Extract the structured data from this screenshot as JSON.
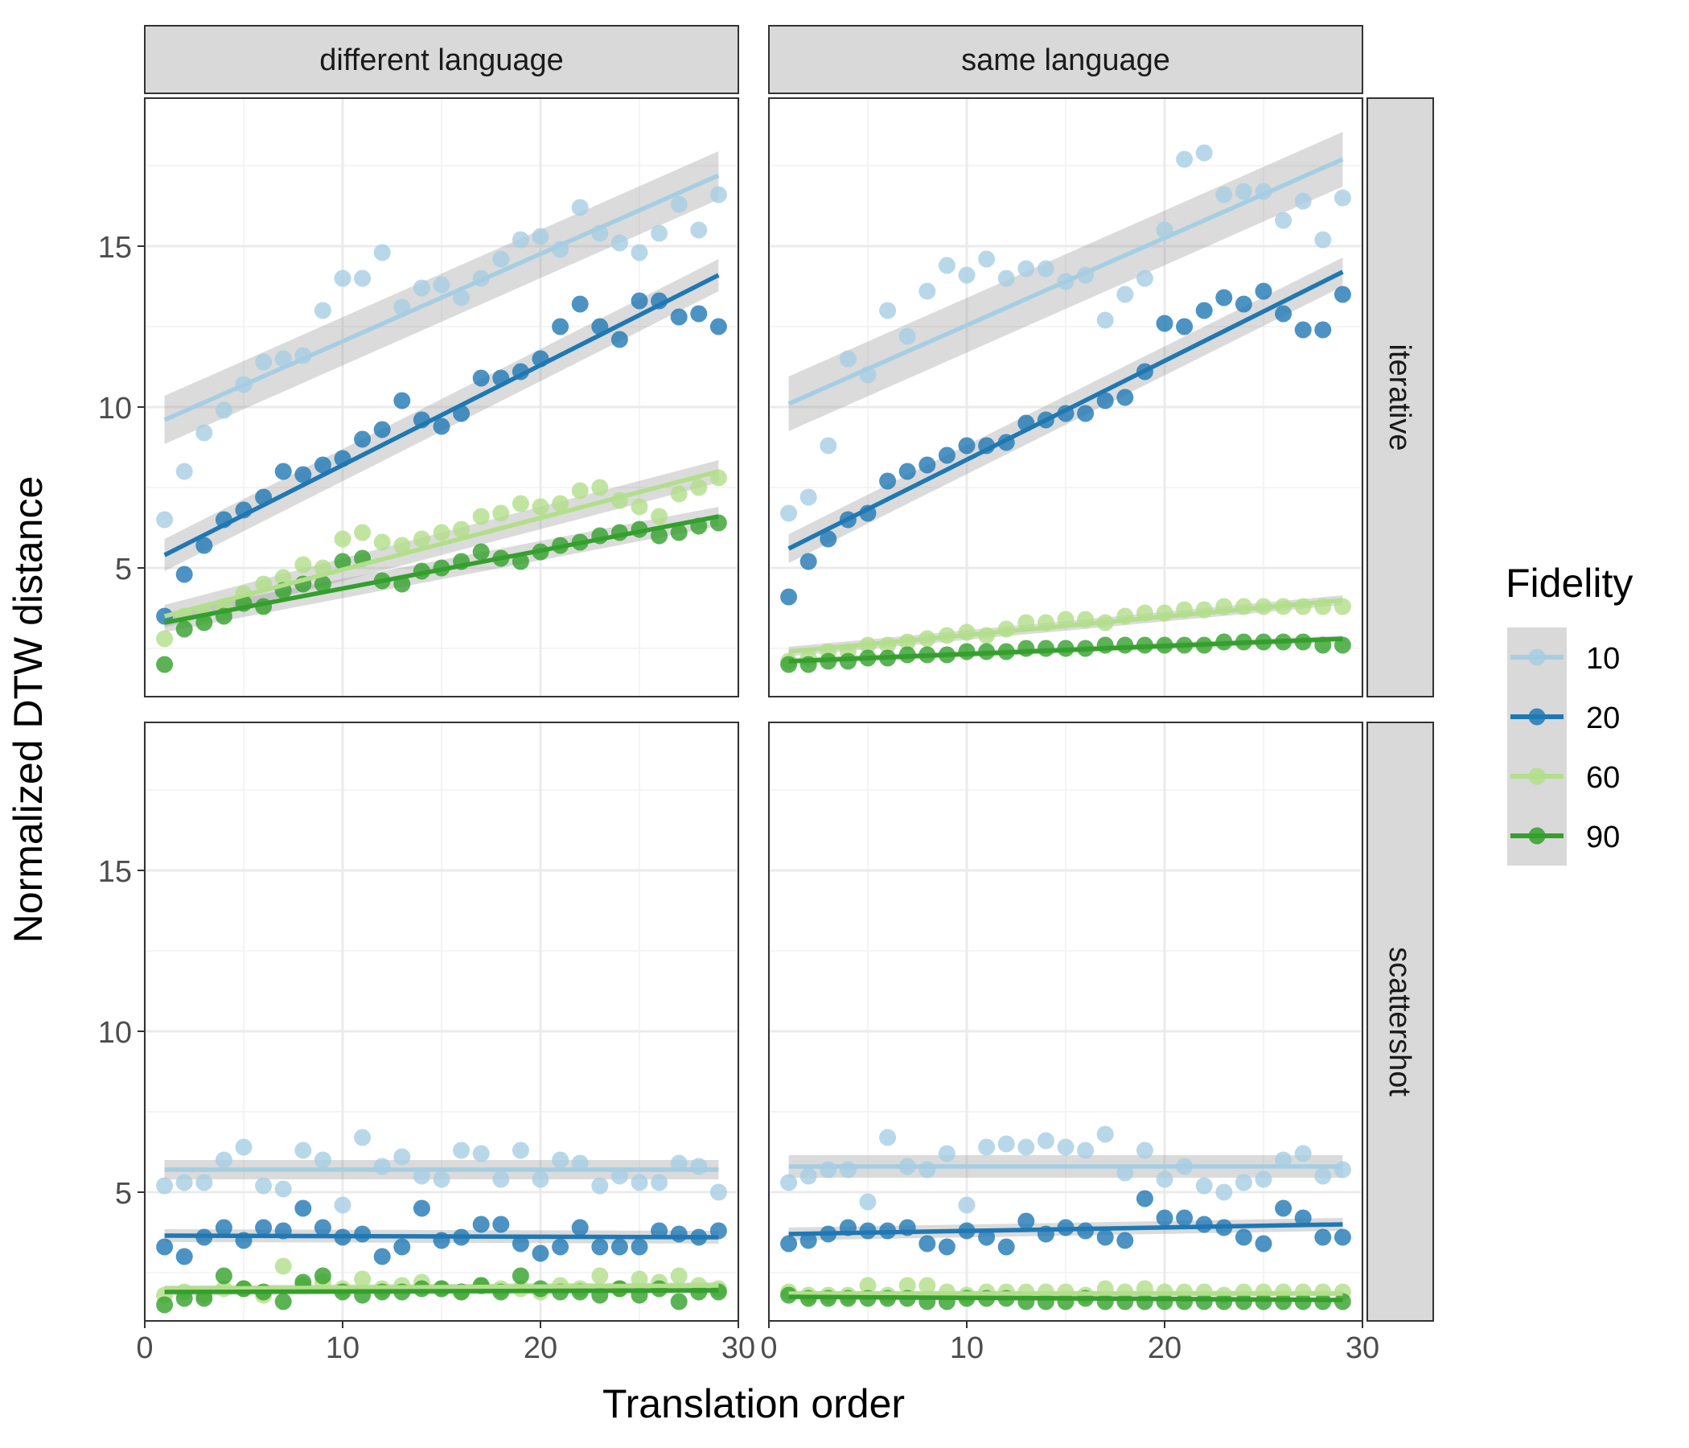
{
  "chart_data": {
    "type": "scatter",
    "xlabel": "Translation order",
    "ylabel": "Normalized DTW distance",
    "xlim": [
      0,
      30
    ],
    "ylim": [
      1.0,
      19.6
    ],
    "x_ticks": [
      0,
      10,
      20,
      30
    ],
    "y_ticks": [
      5,
      10,
      15
    ],
    "grid": true,
    "columns": [
      "different language",
      "same language"
    ],
    "rows": [
      "iterative",
      "scattershot"
    ],
    "legend": {
      "title": "Fidelity",
      "position": "right",
      "entries": [
        "10",
        "20",
        "60",
        "90"
      ]
    },
    "colors": {
      "10": "#a6cee3",
      "20": "#1f78b4",
      "60": "#b2df8a",
      "90": "#33a02c"
    },
    "x": [
      1,
      2,
      3,
      4,
      5,
      6,
      7,
      8,
      9,
      10,
      11,
      12,
      13,
      14,
      15,
      16,
      17,
      18,
      19,
      20,
      21,
      22,
      23,
      24,
      25,
      26,
      27,
      28,
      29
    ],
    "panels": [
      {
        "column": "different language",
        "row": "iterative",
        "series": [
          {
            "name": "10",
            "values": [
              6.5,
              8.0,
              9.2,
              9.9,
              10.7,
              11.4,
              11.5,
              11.6,
              13.0,
              14.0,
              14.0,
              14.8,
              13.1,
              13.7,
              13.8,
              13.4,
              14.0,
              14.6,
              15.2,
              15.3,
              14.9,
              16.2,
              15.4,
              15.1,
              14.8,
              15.4,
              16.3,
              15.5,
              16.6
            ],
            "fit": [
              9.6,
              17.2
            ],
            "band": 0.75
          },
          {
            "name": "20",
            "values": [
              3.5,
              4.8,
              5.7,
              6.5,
              6.8,
              7.2,
              8.0,
              7.9,
              8.2,
              8.4,
              9.0,
              9.3,
              10.2,
              9.6,
              9.4,
              9.8,
              10.9,
              10.9,
              11.1,
              11.5,
              12.5,
              13.2,
              12.5,
              12.1,
              13.3,
              13.3,
              12.8,
              12.9,
              12.5
            ],
            "fit": [
              5.4,
              14.1
            ],
            "band": 0.5
          },
          {
            "name": "60",
            "values": [
              2.8,
              3.5,
              3.6,
              3.8,
              4.2,
              4.5,
              4.7,
              5.1,
              5.0,
              5.9,
              6.1,
              5.8,
              5.7,
              5.9,
              6.1,
              6.2,
              6.6,
              6.7,
              7.0,
              6.9,
              7.0,
              7.4,
              7.5,
              7.1,
              6.9,
              6.6,
              7.3,
              7.5,
              7.8
            ],
            "fit": [
              3.5,
              8.0
            ],
            "band": 0.35
          },
          {
            "name": "90",
            "values": [
              2.0,
              3.1,
              3.3,
              3.5,
              3.9,
              3.8,
              4.3,
              4.5,
              4.5,
              5.2,
              5.3,
              4.6,
              4.5,
              4.9,
              5.0,
              5.2,
              5.5,
              5.3,
              5.2,
              5.5,
              5.7,
              5.8,
              6.0,
              6.1,
              6.2,
              6.0,
              6.1,
              6.3,
              6.4
            ],
            "fit": [
              3.3,
              6.6
            ],
            "band": 0.3
          }
        ]
      },
      {
        "column": "same language",
        "row": "iterative",
        "series": [
          {
            "name": "10",
            "values": [
              6.7,
              7.2,
              8.8,
              11.5,
              11.0,
              13.0,
              12.2,
              13.6,
              14.4,
              14.1,
              14.6,
              14.0,
              14.3,
              14.3,
              13.9,
              14.1,
              12.7,
              13.5,
              14.0,
              15.5,
              17.7,
              17.9,
              16.6,
              16.7,
              16.7,
              15.8,
              16.4,
              15.2,
              16.5
            ],
            "fit": [
              10.1,
              17.7
            ],
            "band": 0.85
          },
          {
            "name": "20",
            "values": [
              4.1,
              5.2,
              5.9,
              6.5,
              6.7,
              7.7,
              8.0,
              8.2,
              8.5,
              8.8,
              8.8,
              8.9,
              9.5,
              9.6,
              9.8,
              9.8,
              10.2,
              10.3,
              11.1,
              12.6,
              12.5,
              13.0,
              13.4,
              13.2,
              13.6,
              12.9,
              12.4,
              12.4,
              13.5
            ],
            "fit": [
              5.6,
              14.2
            ],
            "band": 0.45
          },
          {
            "name": "60",
            "values": [
              2.1,
              2.2,
              2.4,
              2.4,
              2.6,
              2.6,
              2.7,
              2.8,
              2.9,
              3.0,
              2.9,
              3.1,
              3.3,
              3.3,
              3.4,
              3.4,
              3.3,
              3.5,
              3.6,
              3.6,
              3.7,
              3.7,
              3.8,
              3.8,
              3.8,
              3.8,
              3.8,
              3.8,
              3.8
            ],
            "fit": [
              2.4,
              4.0
            ],
            "band": 0.15
          },
          {
            "name": "90",
            "values": [
              2.0,
              2.0,
              2.1,
              2.1,
              2.2,
              2.2,
              2.3,
              2.3,
              2.3,
              2.4,
              2.4,
              2.4,
              2.5,
              2.5,
              2.5,
              2.5,
              2.6,
              2.6,
              2.6,
              2.6,
              2.6,
              2.6,
              2.7,
              2.7,
              2.7,
              2.7,
              2.7,
              2.6,
              2.6
            ],
            "fit": [
              2.1,
              2.8
            ],
            "band": 0.1
          }
        ]
      },
      {
        "column": "different language",
        "row": "scattershot",
        "series": [
          {
            "name": "10",
            "values": [
              5.2,
              5.3,
              5.3,
              6.0,
              6.4,
              5.2,
              5.1,
              6.3,
              6.0,
              4.6,
              6.7,
              5.8,
              6.1,
              5.5,
              5.4,
              6.3,
              6.2,
              5.4,
              6.3,
              5.4,
              6.0,
              5.9,
              5.2,
              5.5,
              5.3,
              5.3,
              5.9,
              5.8,
              5.0
            ],
            "fit": [
              5.7,
              5.7
            ],
            "band": 0.3
          },
          {
            "name": "20",
            "values": [
              3.3,
              3.0,
              3.6,
              3.9,
              3.5,
              3.9,
              3.8,
              4.5,
              3.9,
              3.6,
              3.7,
              3.0,
              3.3,
              4.5,
              3.5,
              3.6,
              4.0,
              4.0,
              3.4,
              3.1,
              3.3,
              3.9,
              3.3,
              3.3,
              3.3,
              3.8,
              3.7,
              3.6,
              3.8
            ],
            "fit": [
              3.65,
              3.6
            ],
            "band": 0.2
          },
          {
            "name": "60",
            "values": [
              1.8,
              1.9,
              1.8,
              2.0,
              2.0,
              1.8,
              2.7,
              2.1,
              2.2,
              2.0,
              2.3,
              2.0,
              2.1,
              2.2,
              2.0,
              1.9,
              2.1,
              2.0,
              2.0,
              1.9,
              2.1,
              2.0,
              2.4,
              2.0,
              2.3,
              2.2,
              2.4,
              2.1,
              2.0
            ],
            "fit": [
              2.0,
              2.1
            ],
            "band": 0.1
          },
          {
            "name": "90",
            "values": [
              1.5,
              1.7,
              1.7,
              2.4,
              2.0,
              1.9,
              1.6,
              2.2,
              2.4,
              1.9,
              1.8,
              1.9,
              1.9,
              2.0,
              2.0,
              1.9,
              2.1,
              1.9,
              2.4,
              2.0,
              1.9,
              1.9,
              1.8,
              2.0,
              1.8,
              2.0,
              1.6,
              1.9,
              1.9
            ],
            "fit": [
              1.9,
              1.95
            ],
            "band": 0.1
          }
        ]
      },
      {
        "column": "same language",
        "row": "scattershot",
        "series": [
          {
            "name": "10",
            "values": [
              5.3,
              5.5,
              5.7,
              5.7,
              4.7,
              6.7,
              5.8,
              5.7,
              6.2,
              4.6,
              6.4,
              6.5,
              6.4,
              6.6,
              6.4,
              6.3,
              6.8,
              5.6,
              6.3,
              5.4,
              5.8,
              5.2,
              5.0,
              5.3,
              5.4,
              6.0,
              6.2,
              5.5,
              5.7
            ],
            "fit": [
              5.8,
              5.8
            ],
            "band": 0.35
          },
          {
            "name": "20",
            "values": [
              3.4,
              3.5,
              3.7,
              3.9,
              3.8,
              3.8,
              3.9,
              3.4,
              3.3,
              3.8,
              3.6,
              3.3,
              4.1,
              3.7,
              3.9,
              3.8,
              3.6,
              3.5,
              4.8,
              4.2,
              4.2,
              4.0,
              3.9,
              3.6,
              3.4,
              4.5,
              4.2,
              3.6,
              3.6
            ],
            "fit": [
              3.7,
              4.0
            ],
            "band": 0.2
          },
          {
            "name": "60",
            "values": [
              1.9,
              1.8,
              1.8,
              1.8,
              2.1,
              1.8,
              2.1,
              2.1,
              1.9,
              1.8,
              1.9,
              1.9,
              1.9,
              1.9,
              1.9,
              1.8,
              2.0,
              1.9,
              2.0,
              1.9,
              1.9,
              1.9,
              1.8,
              1.9,
              1.9,
              1.9,
              1.9,
              1.9,
              1.9
            ],
            "fit": [
              1.85,
              1.85
            ],
            "band": 0.08
          },
          {
            "name": "90",
            "values": [
              1.8,
              1.7,
              1.7,
              1.7,
              1.7,
              1.7,
              1.7,
              1.6,
              1.6,
              1.7,
              1.7,
              1.7,
              1.6,
              1.6,
              1.6,
              1.7,
              1.6,
              1.6,
              1.6,
              1.6,
              1.6,
              1.6,
              1.6,
              1.6,
              1.6,
              1.6,
              1.6,
              1.6,
              1.6
            ],
            "fit": [
              1.75,
              1.65
            ],
            "band": 0.08
          }
        ]
      }
    ]
  }
}
